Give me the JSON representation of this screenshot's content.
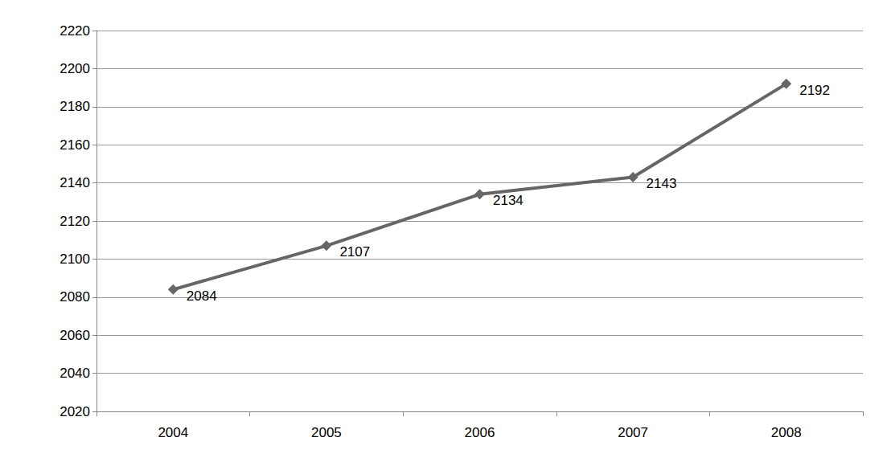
{
  "chart_data": {
    "type": "line",
    "categories": [
      "2004",
      "2005",
      "2006",
      "2007",
      "2008"
    ],
    "values": [
      2084,
      2107,
      2134,
      2143,
      2192
    ],
    "color": "#666666",
    "marker": "diamond",
    "ylim": [
      2020,
      2220
    ],
    "yticks": [
      2020,
      2040,
      2060,
      2080,
      2100,
      2120,
      2140,
      2160,
      2180,
      2200,
      2220
    ],
    "grid": true,
    "data_labels": true
  }
}
